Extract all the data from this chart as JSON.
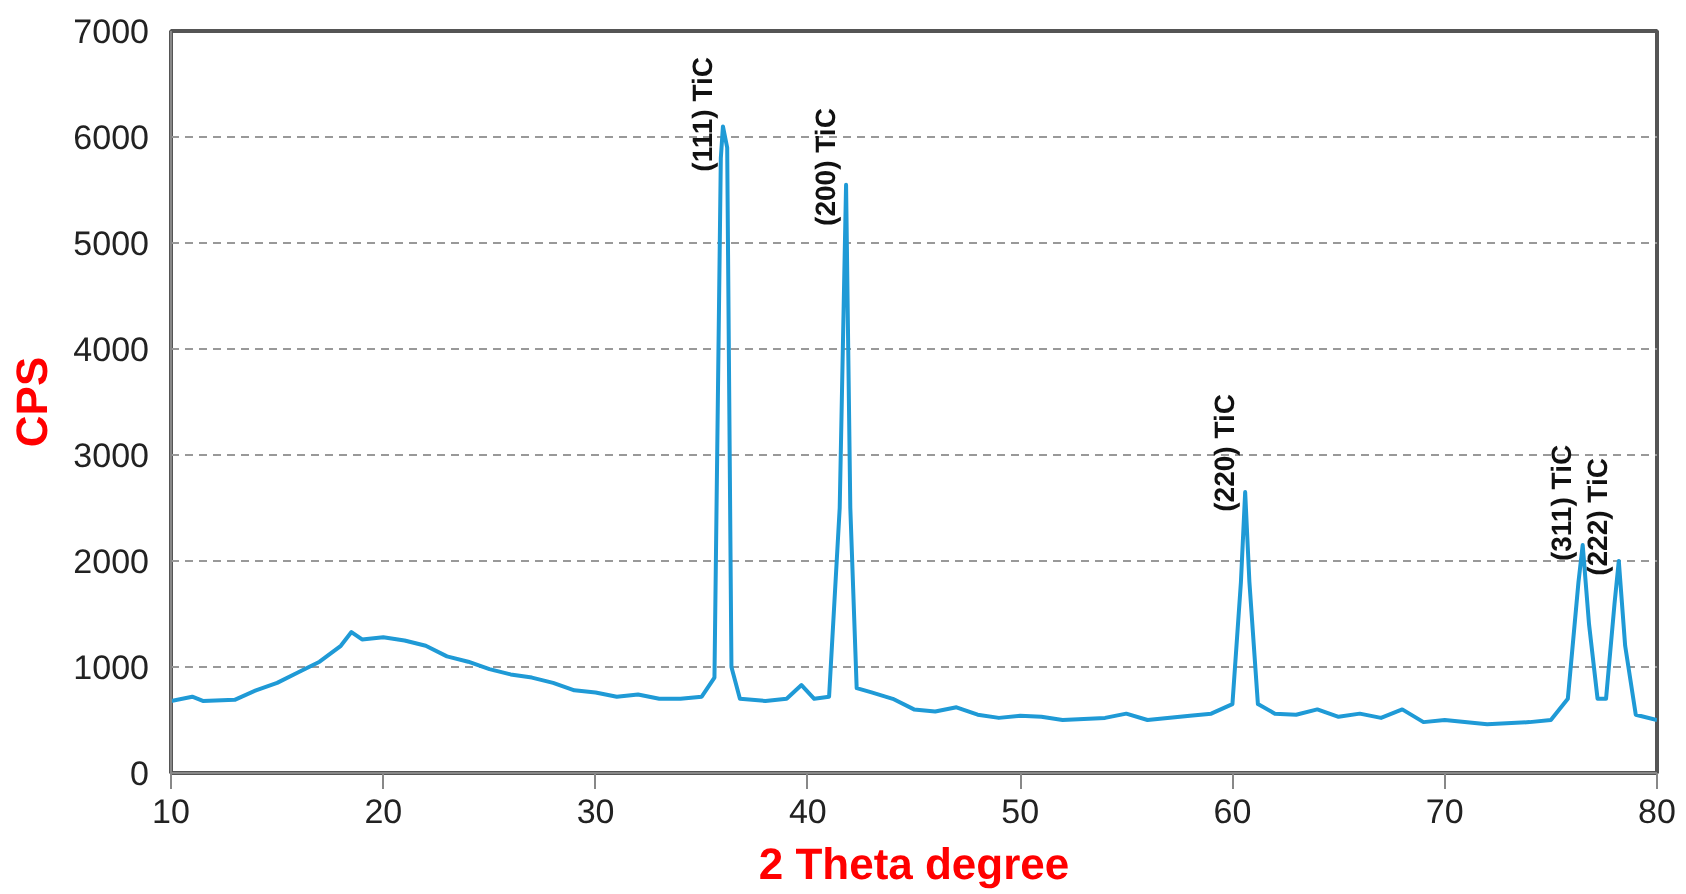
{
  "chart_data": {
    "type": "line",
    "xlabel": "2 Theta degree",
    "ylabel": "CPS",
    "xlim": [
      10,
      80
    ],
    "xticks": [
      10,
      20,
      30,
      40,
      50,
      60,
      70,
      80
    ],
    "ylim": [
      0,
      7000
    ],
    "yticks": [
      0,
      1000,
      2000,
      3000,
      4000,
      5000,
      6000,
      7000
    ],
    "grid": "y",
    "line_style": "solid",
    "marker": "none",
    "series": [
      {
        "color": "#1f9ad6",
        "x": [
          10,
          11,
          11.5,
          13,
          14,
          15,
          16,
          17,
          18,
          18.5,
          19,
          20,
          21,
          22,
          23,
          24,
          25,
          26,
          27,
          28,
          29,
          30,
          31,
          32,
          33,
          34,
          35,
          35.6,
          35.9,
          36.0,
          36.2,
          36.4,
          36.8,
          38,
          39,
          39.7,
          40.3,
          41.0,
          41.5,
          41.8,
          42.0,
          42.3,
          43,
          44,
          45,
          46,
          47,
          48,
          49,
          50,
          51,
          52,
          54,
          55,
          56,
          58,
          59,
          60,
          60.4,
          60.6,
          60.8,
          61.2,
          62,
          63,
          64,
          65,
          66,
          67,
          68,
          69,
          70,
          72,
          74,
          75,
          75.8,
          76.3,
          76.5,
          76.8,
          77.2,
          77.6,
          78.0,
          78.2,
          78.5,
          79,
          80
        ],
        "values": [
          680,
          720,
          680,
          690,
          780,
          850,
          950,
          1050,
          1200,
          1330,
          1260,
          1280,
          1250,
          1200,
          1100,
          1050,
          980,
          930,
          900,
          850,
          780,
          760,
          720,
          740,
          700,
          700,
          720,
          900,
          5800,
          6100,
          5900,
          1000,
          700,
          680,
          700,
          830,
          700,
          720,
          2500,
          5550,
          2500,
          800,
          760,
          700,
          600,
          580,
          620,
          550,
          520,
          540,
          530,
          500,
          520,
          560,
          500,
          540,
          560,
          650,
          1800,
          2650,
          1800,
          650,
          560,
          550,
          600,
          530,
          560,
          520,
          600,
          480,
          500,
          460,
          480,
          500,
          700,
          1800,
          2150,
          1400,
          700,
          700,
          1600,
          2000,
          1200,
          550,
          500
        ]
      }
    ],
    "annotations": [
      {
        "text": "(111) TiC",
        "x": 36.0,
        "y": 6100
      },
      {
        "text": "(200) TiC",
        "x": 41.8,
        "y": 5550
      },
      {
        "text": "(220) TiC",
        "x": 60.6,
        "y": 2650
      },
      {
        "text": "(311) TiC",
        "x": 76.5,
        "y": 2150
      },
      {
        "text": "(222) TiC",
        "x": 78.2,
        "y": 2000
      }
    ]
  }
}
